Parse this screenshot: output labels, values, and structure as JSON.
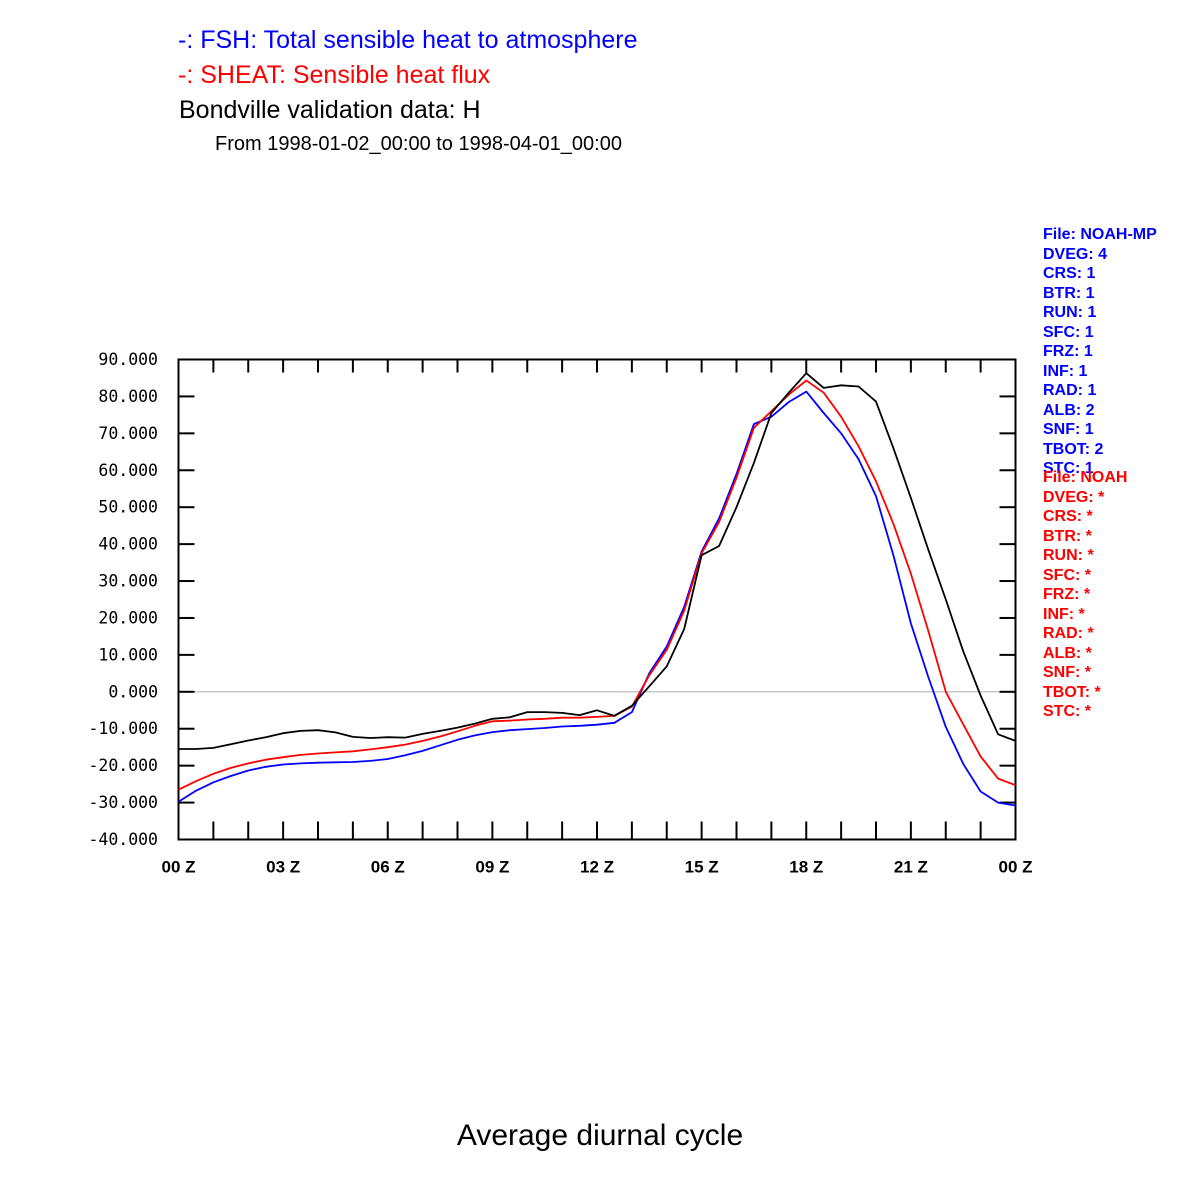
{
  "page": {
    "titles": {
      "line1": "-: FSH: Total sensible heat to atmosphere",
      "line2": "-: SHEAT: Sensible heat flux",
      "line3": "Bondville validation data: H",
      "line4": "From 1998-01-02_00:00 to 1998-04-01_00:00",
      "bottom": "Average diurnal cycle"
    },
    "colors": {
      "fsh_blue": "#0000ff",
      "sheat_red": "#ff0000",
      "validation_black": "#000000",
      "zero_line_gray": "#c9c9c9"
    }
  },
  "legend_noahmp": {
    "color": "#0000ff",
    "lines": [
      "File: NOAH-MP",
      "DVEG: 4",
      "CRS: 1",
      "BTR: 1",
      "RUN: 1",
      "SFC: 1",
      "FRZ: 1",
      "INF: 1",
      "RAD: 1",
      "ALB: 2",
      "SNF: 1",
      "TBOT: 2",
      "STC: 1"
    ]
  },
  "legend_noah": {
    "color": "#ff0000",
    "lines": [
      "File: NOAH",
      "DVEG: *",
      "CRS: *",
      "BTR: *",
      "RUN: *",
      "SFC: *",
      "FRZ: *",
      "INF: *",
      "RAD: *",
      "ALB: *",
      "SNF: *",
      "TBOT: *",
      "STC: *"
    ]
  },
  "chart_data": {
    "type": "line",
    "title": "Bondville validation data: H",
    "subtitle": "From 1998-01-02_00:00 to 1998-04-01_00:00",
    "footer": "Average diurnal cycle",
    "x_axis_unit": "UTC hour (Z)",
    "xlim": [
      0,
      24
    ],
    "ylim": [
      -40,
      90
    ],
    "grid": "zero-line-only",
    "zero_reference_line": true,
    "minor_x_tick_every_hours": 1,
    "x_tick_hours": [
      0,
      3,
      6,
      9,
      12,
      15,
      18,
      21,
      24
    ],
    "x_tick_labels": [
      "00 Z",
      "03 Z",
      "06 Z",
      "09 Z",
      "12 Z",
      "15 Z",
      "18 Z",
      "21 Z",
      "00 Z"
    ],
    "y_ticks": [
      90,
      80,
      70,
      60,
      50,
      40,
      30,
      20,
      10,
      0,
      -10,
      -20,
      -30,
      -40
    ],
    "y_tick_labels": [
      "90.000",
      "80.000",
      "70.000",
      "60.000",
      "50.000",
      "40.000",
      "30.000",
      "20.000",
      "10.000",
      "0.000",
      "-10.000",
      "-20.000",
      "-30.000",
      "-40.000"
    ],
    "x_hours": [
      0,
      0.5,
      1,
      1.5,
      2,
      2.5,
      3,
      3.5,
      4,
      4.5,
      5,
      5.5,
      6,
      6.5,
      7,
      7.5,
      8,
      8.5,
      9,
      9.5,
      10,
      10.5,
      11,
      11.5,
      12,
      12.5,
      13,
      13.5,
      14,
      14.5,
      15,
      15.5,
      16,
      16.5,
      17,
      17.5,
      18,
      18.5,
      19,
      19.5,
      20,
      20.5,
      21,
      21.5,
      22,
      22.5,
      23,
      23.5,
      24
    ],
    "series": [
      {
        "key": "fsh",
        "name": "FSH: Total sensible heat to atmosphere (NOAH-MP)",
        "color": "#0000ff",
        "values": [
          -29.8,
          -26.8,
          -24.5,
          -22.8,
          -21.3,
          -20.3,
          -19.7,
          -19.4,
          -19.2,
          -19.1,
          -19.0,
          -18.7,
          -18.2,
          -17.2,
          -16.0,
          -14.5,
          -13.0,
          -11.8,
          -10.9,
          -10.4,
          -10.1,
          -9.8,
          -9.4,
          -9.2,
          -8.9,
          -8.4,
          -5.5,
          5.0,
          12.3,
          23.0,
          38.0,
          47.0,
          59.0,
          72.5,
          74.5,
          78.5,
          81.3,
          75.5,
          70.0,
          63.0,
          53.0,
          37.0,
          18.5,
          4.0,
          -9.5,
          -19.5,
          -27.0,
          -30.0,
          -30.8
        ]
      },
      {
        "key": "sheat",
        "name": "SHEAT: Sensible heat flux (NOAH)",
        "color": "#ff0000",
        "values": [
          -26.5,
          -24.2,
          -22.2,
          -20.6,
          -19.4,
          -18.4,
          -17.7,
          -17.1,
          -16.7,
          -16.4,
          -16.1,
          -15.6,
          -15.0,
          -14.3,
          -13.3,
          -12.1,
          -10.7,
          -9.2,
          -8.0,
          -7.8,
          -7.5,
          -7.3,
          -7.0,
          -7.0,
          -6.8,
          -6.5,
          -4.0,
          4.5,
          11.4,
          22.0,
          37.5,
          46.0,
          58.0,
          71.5,
          76.0,
          80.5,
          84.3,
          81.0,
          74.5,
          66.5,
          57.0,
          45.5,
          32.0,
          16.5,
          0.0,
          -8.8,
          -17.5,
          -23.5,
          -25.3
        ]
      },
      {
        "key": "h_validation",
        "name": "Bondville validation data: H",
        "color": "#000000",
        "values": [
          -15.5,
          -15.5,
          -15.2,
          -14.2,
          -13.2,
          -12.3,
          -11.2,
          -10.6,
          -10.4,
          -11.0,
          -12.2,
          -12.5,
          -12.3,
          -12.4,
          -11.4,
          -10.6,
          -9.7,
          -8.6,
          -7.3,
          -6.9,
          -5.5,
          -5.5,
          -5.7,
          -6.3,
          -5.0,
          -6.5,
          -3.8,
          1.5,
          6.9,
          17.0,
          37.0,
          39.5,
          50.0,
          62.0,
          75.5,
          81.0,
          86.3,
          82.3,
          83.0,
          82.7,
          78.6,
          66.0,
          52.5,
          38.5,
          25.0,
          11.0,
          -1.0,
          -11.5,
          -13.3
        ]
      }
    ]
  }
}
